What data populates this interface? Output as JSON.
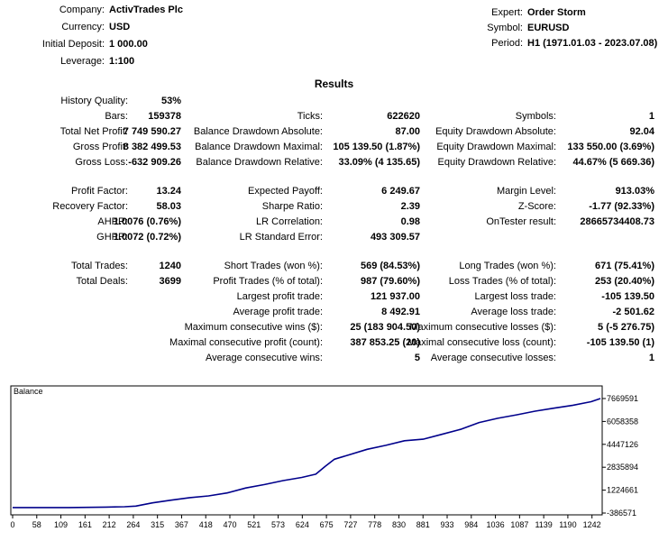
{
  "header": {
    "left": [
      {
        "label": "Company:",
        "value": "ActivTrades Plc"
      },
      {
        "label": "Currency:",
        "value": "USD"
      },
      {
        "label": "Initial Deposit:",
        "value": "1 000.00"
      },
      {
        "label": "Leverage:",
        "value": "1:100"
      }
    ],
    "right": [
      {
        "label": "Expert:",
        "value": "Order Storm"
      },
      {
        "label": "Symbol:",
        "value": "EURUSD"
      },
      {
        "label": "Period:",
        "value": "H1 (1971.01.03 - 2023.07.08)"
      }
    ]
  },
  "results_title": "Results",
  "stats": {
    "col1": [
      {
        "label": "History Quality:",
        "value": "53%"
      },
      {
        "label": "Bars:",
        "value": "159378"
      },
      {
        "label": "Total Net Profit:",
        "value": "7 749 590.27"
      },
      {
        "label": "Gross Profit:",
        "value": "8 382 499.53"
      },
      {
        "label": "Gross Loss:",
        "value": "-632 909.26"
      },
      {
        "label": "Profit Factor:",
        "value": "13.24"
      },
      {
        "label": "Recovery Factor:",
        "value": "58.03"
      },
      {
        "label": "AHPR:",
        "value": "1.0076 (0.76%)"
      },
      {
        "label": "GHPR:",
        "value": "1.0072 (0.72%)"
      },
      {
        "label": "Total Trades:",
        "value": "1240"
      },
      {
        "label": "Total Deals:",
        "value": "3699"
      }
    ],
    "col2": [
      {
        "label": "Ticks:",
        "value": "622620"
      },
      {
        "label": "Balance Drawdown Absolute:",
        "value": "87.00"
      },
      {
        "label": "Balance Drawdown Maximal:",
        "value": "105 139.50 (1.87%)"
      },
      {
        "label": "Balance Drawdown Relative:",
        "value": "33.09% (4 135.65)"
      },
      {
        "label": "Expected Payoff:",
        "value": "6 249.67"
      },
      {
        "label": "Sharpe Ratio:",
        "value": "2.39"
      },
      {
        "label": "LR Correlation:",
        "value": "0.98"
      },
      {
        "label": "LR Standard Error:",
        "value": "493 309.57"
      },
      {
        "label": "Short Trades (won %):",
        "value": "569 (84.53%)"
      },
      {
        "label": "Profit Trades (% of total):",
        "value": "987 (79.60%)"
      },
      {
        "label": "Largest profit trade:",
        "value": "121 937.00"
      },
      {
        "label": "Average profit trade:",
        "value": "8 492.91"
      },
      {
        "label": "Maximum consecutive wins ($):",
        "value": "25 (183 904.50)"
      },
      {
        "label": "Maximal consecutive profit (count):",
        "value": "387 853.25 (20)"
      },
      {
        "label": "Average consecutive wins:",
        "value": "5"
      }
    ],
    "col3": [
      {
        "label": "Symbols:",
        "value": "1"
      },
      {
        "label": "Equity Drawdown Absolute:",
        "value": "92.04"
      },
      {
        "label": "Equity Drawdown Maximal:",
        "value": "133 550.00 (3.69%)"
      },
      {
        "label": "Equity Drawdown Relative:",
        "value": "44.67% (5 669.36)"
      },
      {
        "label": "Margin Level:",
        "value": "913.03%"
      },
      {
        "label": "Z-Score:",
        "value": "-1.77 (92.33%)"
      },
      {
        "label": "OnTester result:",
        "value": "28665734408.73"
      },
      {
        "label": "Long Trades (won %):",
        "value": "671 (75.41%)"
      },
      {
        "label": "Loss Trades (% of total):",
        "value": "253 (20.40%)"
      },
      {
        "label": "Largest loss trade:",
        "value": "-105 139.50"
      },
      {
        "label": "Average loss trade:",
        "value": "-2 501.62"
      },
      {
        "label": "Maximum consecutive losses ($):",
        "value": "5 (-5 276.75)"
      },
      {
        "label": "Maximal consecutive loss (count):",
        "value": "-105 139.50 (1)"
      },
      {
        "label": "Average consecutive losses:",
        "value": "1"
      }
    ]
  },
  "chart_data": {
    "type": "line",
    "title": "Balance",
    "xlabel": "",
    "ylabel": "",
    "x_ticks": [
      "0",
      "58",
      "109",
      "161",
      "212",
      "264",
      "315",
      "367",
      "418",
      "470",
      "521",
      "573",
      "624",
      "675",
      "727",
      "778",
      "830",
      "881",
      "933",
      "984",
      "1036",
      "1087",
      "1139",
      "1190",
      "1242"
    ],
    "y_ticks": [
      "7669591",
      "6058358",
      "4447126",
      "2835894",
      "1224661",
      "-386571"
    ],
    "xlim": [
      0,
      1260
    ],
    "ylim": [
      -386571,
      7669591
    ],
    "series": [
      {
        "color": "#00008b",
        "x": [
          0,
          40,
          80,
          120,
          160,
          200,
          240,
          264,
          300,
          340,
          380,
          420,
          460,
          500,
          540,
          580,
          620,
          650,
          670,
          690,
          720,
          760,
          800,
          840,
          880,
          920,
          960,
          1000,
          1040,
          1080,
          1120,
          1160,
          1200,
          1240,
          1260
        ],
        "y": [
          1000,
          1000,
          1000,
          1000,
          10000,
          30000,
          60000,
          100000,
          330000,
          520000,
          700000,
          820000,
          1030000,
          1380000,
          1620000,
          1900000,
          2120000,
          2350000,
          2900000,
          3400000,
          3700000,
          4100000,
          4380000,
          4700000,
          4810000,
          5150000,
          5500000,
          5980000,
          6280000,
          6520000,
          6780000,
          6990000,
          7190000,
          7450000,
          7669591
        ]
      }
    ]
  }
}
